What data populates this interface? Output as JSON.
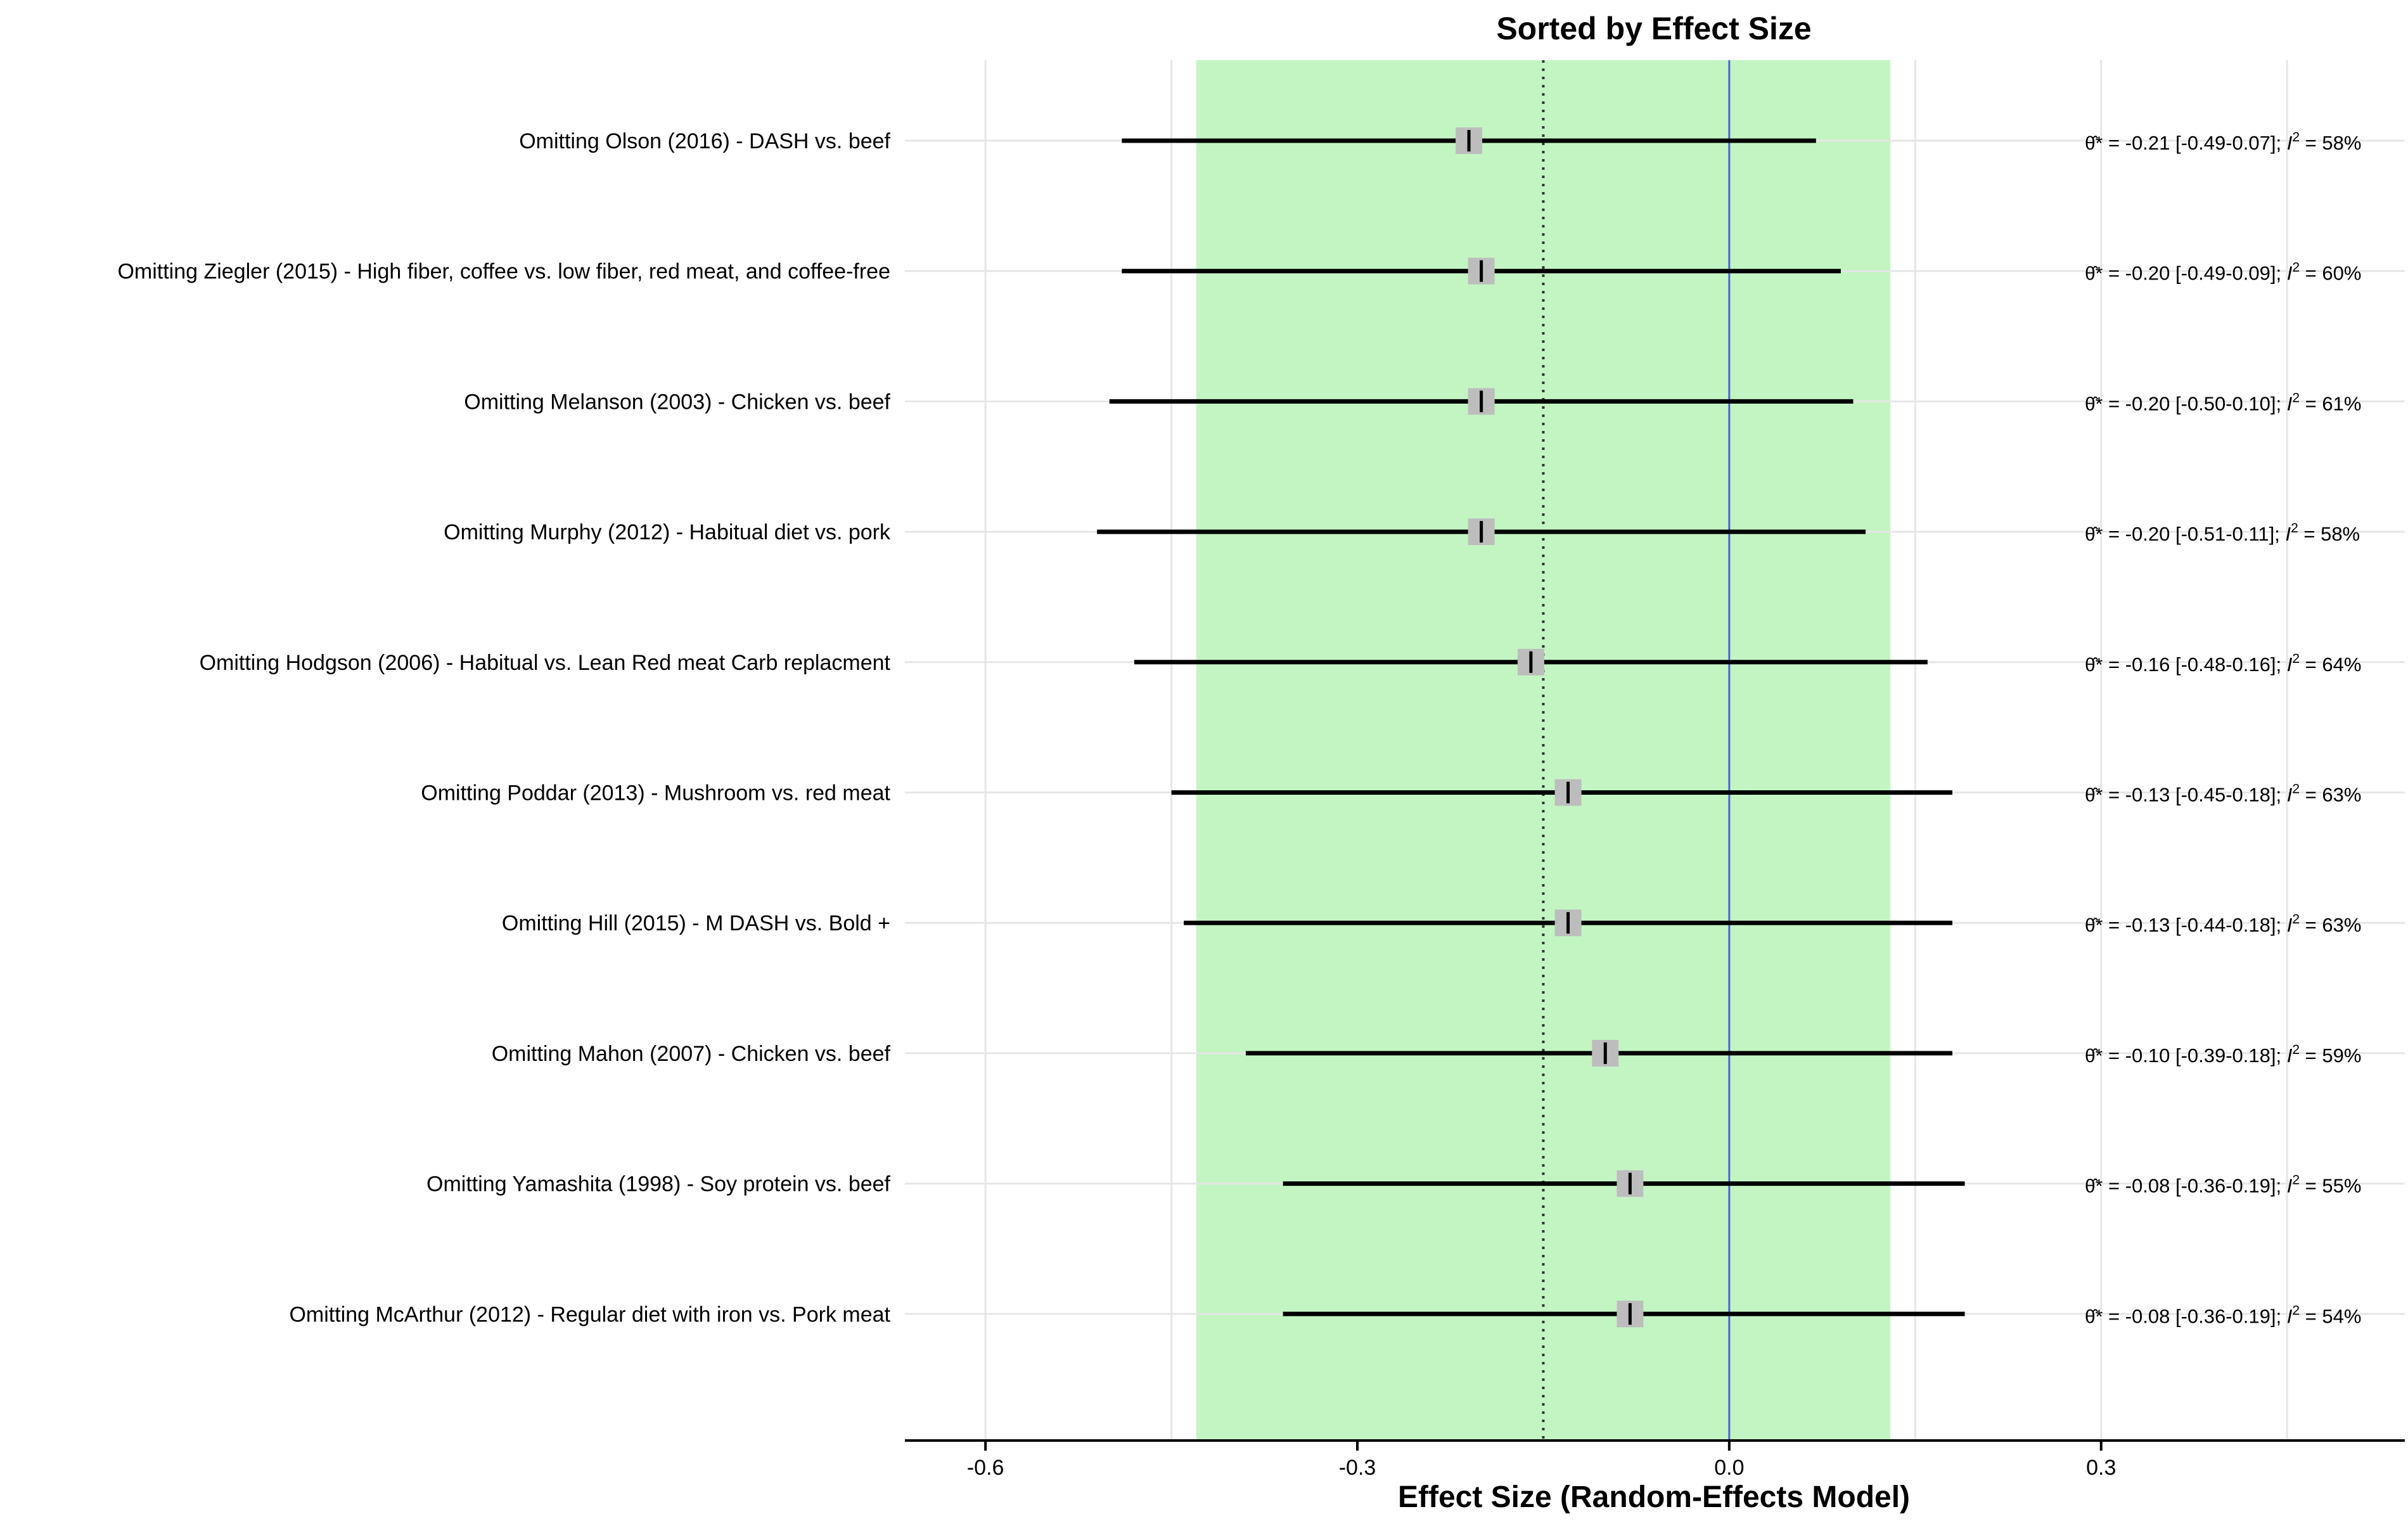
{
  "chart_data": {
    "type": "forest",
    "title": "Sorted by Effect Size",
    "xlabel": "Effect Size (Random-Effects Model)",
    "xlim": [
      -0.665,
      0.545
    ],
    "xticks": [
      -0.6,
      -0.3,
      0.0,
      0.3
    ],
    "xtick_labels": [
      "-0.6",
      "-0.3",
      "0.0",
      "0.3"
    ],
    "reference_line": 0.0,
    "pooled_estimate": -0.15,
    "prediction_interval": [
      -0.43,
      0.13
    ],
    "grid": true,
    "colors": {
      "prediction_band": "#c3f5c3",
      "reference_line": "#4a66c8",
      "point_box": "#bdbdbd",
      "ci_line": "#000000",
      "grid": "#e6e6e6"
    },
    "rows": [
      {
        "label": "Omitting Olson (2016) - DASH vs. beef",
        "est": -0.21,
        "lower": -0.49,
        "upper": 0.07,
        "annotation": "= -0.21 [-0.49-0.07]; ",
        "i2": "= 58%"
      },
      {
        "label": "Omitting Ziegler (2015) - High fiber, coffee vs. low fiber, red meat, and coffee-free",
        "est": -0.2,
        "lower": -0.49,
        "upper": 0.09,
        "annotation": "= -0.20 [-0.49-0.09]; ",
        "i2": "= 60%"
      },
      {
        "label": "Omitting Melanson (2003) - Chicken vs. beef",
        "est": -0.2,
        "lower": -0.5,
        "upper": 0.1,
        "annotation": "= -0.20 [-0.50-0.10]; ",
        "i2": "= 61%"
      },
      {
        "label": "Omitting Murphy (2012) - Habitual diet vs. pork",
        "est": -0.2,
        "lower": -0.51,
        "upper": 0.11,
        "annotation": "= -0.20 [-0.51-0.11]; ",
        "i2": "= 58%"
      },
      {
        "label": "Omitting Hodgson (2006) - Habitual vs. Lean Red meat Carb replacment",
        "est": -0.16,
        "lower": -0.48,
        "upper": 0.16,
        "annotation": "= -0.16 [-0.48-0.16]; ",
        "i2": "= 64%"
      },
      {
        "label": "Omitting Poddar (2013) - Mushroom vs. red meat",
        "est": -0.13,
        "lower": -0.45,
        "upper": 0.18,
        "annotation": "= -0.13 [-0.45-0.18]; ",
        "i2": "= 63%"
      },
      {
        "label": "Omitting Hill (2015) - M DASH vs. Bold +",
        "est": -0.13,
        "lower": -0.44,
        "upper": 0.18,
        "annotation": "= -0.13 [-0.44-0.18]; ",
        "i2": "= 63%"
      },
      {
        "label": "Omitting Mahon (2007) - Chicken vs. beef",
        "est": -0.1,
        "lower": -0.39,
        "upper": 0.18,
        "annotation": "= -0.10 [-0.39-0.18]; ",
        "i2": "= 59%"
      },
      {
        "label": "Omitting Yamashita (1998) - Soy protein vs. beef",
        "est": -0.08,
        "lower": -0.36,
        "upper": 0.19,
        "annotation": "= -0.08 [-0.36-0.19]; ",
        "i2": "= 55%"
      },
      {
        "label": "Omitting McArthur (2012) - Regular diet with iron vs. Pork meat",
        "est": -0.08,
        "lower": -0.36,
        "upper": 0.19,
        "annotation": "= -0.08 [-0.36-0.19]; ",
        "i2": "= 54%"
      }
    ]
  }
}
